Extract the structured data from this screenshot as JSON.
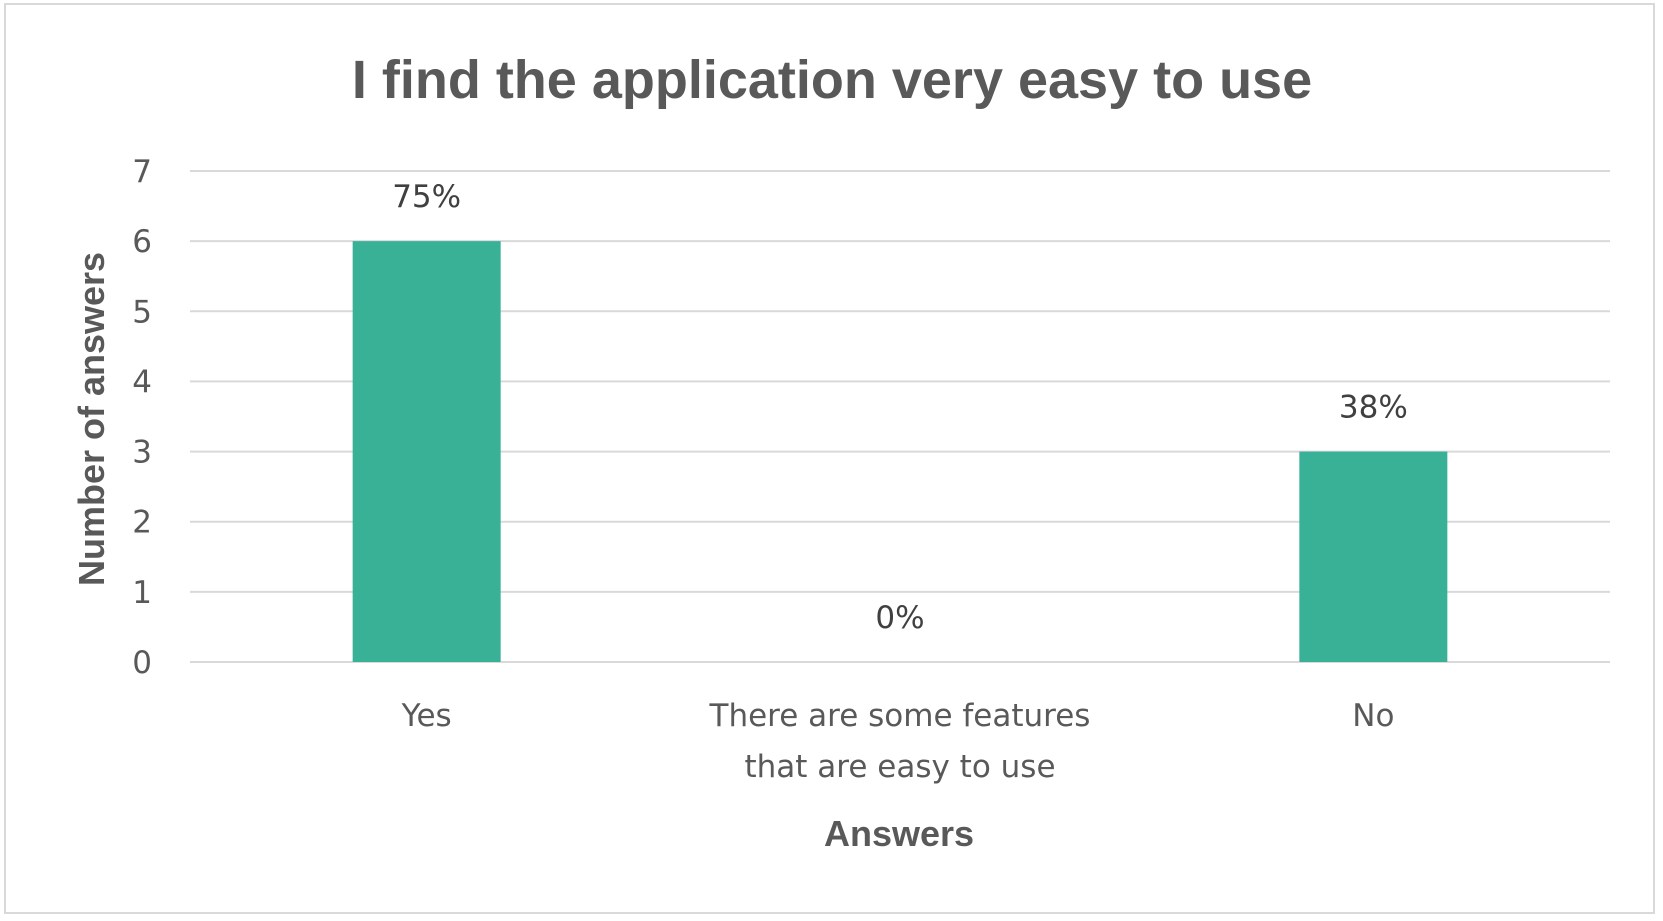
{
  "chart_data": {
    "type": "bar",
    "title": "I find the application very easy to use",
    "xlabel": "Answers",
    "ylabel": "Number of answers",
    "categories": [
      "Yes",
      "There are some features that are easy to use",
      "No"
    ],
    "category_lines": [
      [
        "Yes"
      ],
      [
        "There are some features",
        "that are easy to use"
      ],
      [
        "No"
      ]
    ],
    "values": [
      6,
      0,
      3
    ],
    "data_labels": [
      "75%",
      "0%",
      "38%"
    ],
    "ylim": [
      0,
      7
    ],
    "yticks": [
      0,
      1,
      2,
      3,
      4,
      5,
      6,
      7
    ],
    "grid": true,
    "legend": "none",
    "bar_color": "#38b196"
  }
}
